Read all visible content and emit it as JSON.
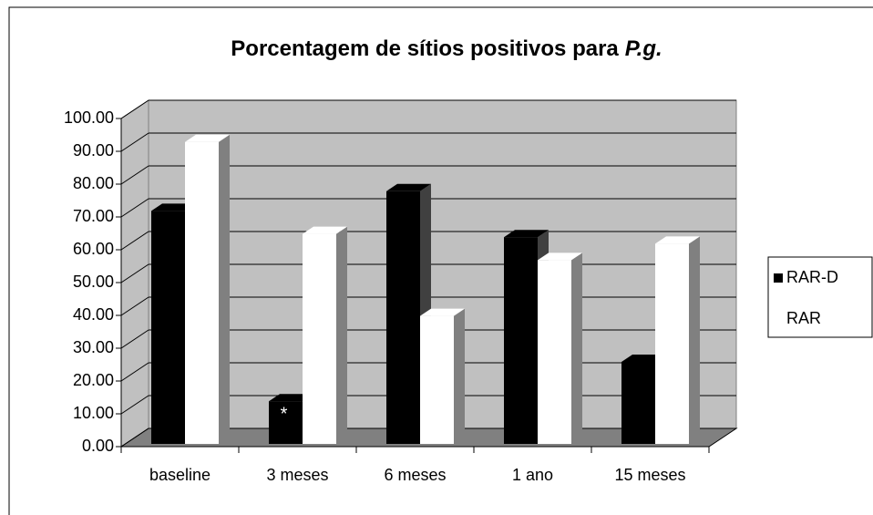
{
  "chart_data": {
    "type": "bar",
    "title": [
      "Porcentagem de sítios positivos para",
      "P.g."
    ],
    "categories": [
      "baseline",
      "3 meses",
      "6 meses",
      "1 ano",
      "15 meses"
    ],
    "series": [
      {
        "name": "RAR-D",
        "color": "#000000",
        "values": [
          71,
          13,
          77,
          63,
          25
        ]
      },
      {
        "name": "RAR",
        "color": "#ffffff",
        "values": [
          92,
          64,
          39,
          56,
          61
        ]
      }
    ],
    "ylim": [
      0,
      100
    ],
    "yticks": [
      {
        "value": 0,
        "label": "0.00"
      },
      {
        "value": 10,
        "label": "10.00"
      },
      {
        "value": 20,
        "label": "20.00"
      },
      {
        "value": 30,
        "label": "30.00"
      },
      {
        "value": 40,
        "label": "40.00"
      },
      {
        "value": 50,
        "label": "50.00"
      },
      {
        "value": 60,
        "label": "60.00"
      },
      {
        "value": 70,
        "label": "70.00"
      },
      {
        "value": 80,
        "label": "80.00"
      },
      {
        "value": 90,
        "label": "90.00"
      },
      {
        "value": 100,
        "label": "100.00"
      }
    ],
    "grid": true,
    "legend": "right",
    "annotations": [
      "*"
    ]
  }
}
